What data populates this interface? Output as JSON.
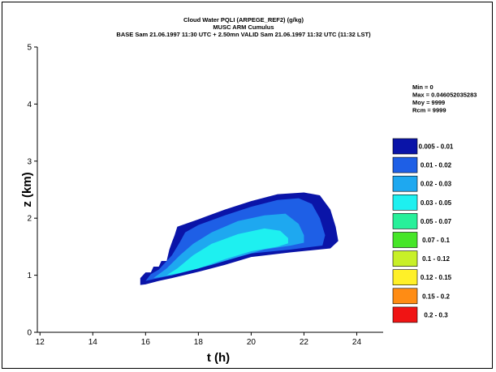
{
  "chart_data": {
    "type": "filled-contour",
    "title_lines": [
      "Cloud Water PQLI (ARPEGE_REF2) (g/kg)",
      "MUSC ARM Cumulus",
      "BASE Sam 21.06.1997 11:30 UTC + 2.50mn VALID Sam 21.06.1997 11:32 UTC (11:32 LST)"
    ],
    "xlabel": "t (h)",
    "ylabel": "z (km)",
    "xlim": [
      11.9,
      25
    ],
    "ylim": [
      0,
      5
    ],
    "xticks": [
      "12",
      "14",
      "16",
      "18",
      "20",
      "22",
      "24"
    ],
    "yticks": [
      "0",
      "1",
      "2",
      "3",
      "4",
      "5"
    ],
    "stats": [
      "Min = 0",
      "Max = 0.046052035283",
      "Moy = 9999",
      "Rcm = 9999"
    ],
    "levels": [
      {
        "label": "0.005 - 0.01",
        "color": "#0a14a8"
      },
      {
        "label": "0.01 - 0.02",
        "color": "#1e5fe6"
      },
      {
        "label": "0.02 - 0.03",
        "color": "#1ea8f0"
      },
      {
        "label": "0.03 - 0.05",
        "color": "#1ef0f0"
      },
      {
        "label": "0.05 - 0.07",
        "color": "#28f09a"
      },
      {
        "label": "0.07 - 0.1",
        "color": "#46e628"
      },
      {
        "label": "0.1 - 0.12",
        "color": "#c8f028"
      },
      {
        "label": "0.12 - 0.15",
        "color": "#fff028"
      },
      {
        "label": "0.15 - 0.2",
        "color": "#ff8c14"
      },
      {
        "label": "0.2 - 0.3",
        "color": "#f01414"
      }
    ],
    "contours": [
      {
        "level": 0,
        "points": [
          [
            15.8,
            0.83
          ],
          [
            15.8,
            0.95
          ],
          [
            16.0,
            1.05
          ],
          [
            16.2,
            1.05
          ],
          [
            16.3,
            1.15
          ],
          [
            16.5,
            1.15
          ],
          [
            16.6,
            1.25
          ],
          [
            16.8,
            1.25
          ],
          [
            16.9,
            1.45
          ],
          [
            17.0,
            1.58
          ],
          [
            17.1,
            1.7
          ],
          [
            17.2,
            1.85
          ],
          [
            18.0,
            1.98
          ],
          [
            19.0,
            2.15
          ],
          [
            20.0,
            2.3
          ],
          [
            21.0,
            2.42
          ],
          [
            22.0,
            2.45
          ],
          [
            22.6,
            2.4
          ],
          [
            23.0,
            2.15
          ],
          [
            23.2,
            1.85
          ],
          [
            23.3,
            1.6
          ],
          [
            23.0,
            1.47
          ],
          [
            21.5,
            1.4
          ],
          [
            20.0,
            1.32
          ],
          [
            19.0,
            1.18
          ],
          [
            18.0,
            1.06
          ],
          [
            17.0,
            0.95
          ],
          [
            16.5,
            0.9
          ],
          [
            16.0,
            0.84
          ]
        ]
      },
      {
        "level": 1,
        "points": [
          [
            16.0,
            0.9
          ],
          [
            16.2,
            1.02
          ],
          [
            16.5,
            1.1
          ],
          [
            17.0,
            1.35
          ],
          [
            17.3,
            1.58
          ],
          [
            17.5,
            1.75
          ],
          [
            18.0,
            1.88
          ],
          [
            19.0,
            2.05
          ],
          [
            20.0,
            2.2
          ],
          [
            21.0,
            2.32
          ],
          [
            21.8,
            2.35
          ],
          [
            22.3,
            2.25
          ],
          [
            22.6,
            2.0
          ],
          [
            22.8,
            1.7
          ],
          [
            22.7,
            1.52
          ],
          [
            21.5,
            1.45
          ],
          [
            20.0,
            1.38
          ],
          [
            19.0,
            1.25
          ],
          [
            18.0,
            1.12
          ],
          [
            17.0,
            1.0
          ],
          [
            16.5,
            0.95
          ]
        ]
      },
      {
        "level": 2,
        "points": [
          [
            16.3,
            0.95
          ],
          [
            16.8,
            1.12
          ],
          [
            17.3,
            1.35
          ],
          [
            17.8,
            1.55
          ],
          [
            18.5,
            1.75
          ],
          [
            19.5,
            1.95
          ],
          [
            20.5,
            2.05
          ],
          [
            21.3,
            2.08
          ],
          [
            21.8,
            1.9
          ],
          [
            22.0,
            1.7
          ],
          [
            22.0,
            1.57
          ],
          [
            21.5,
            1.52
          ],
          [
            20.5,
            1.45
          ],
          [
            19.5,
            1.32
          ],
          [
            18.5,
            1.18
          ],
          [
            17.5,
            1.06
          ],
          [
            17.0,
            1.0
          ],
          [
            16.6,
            0.97
          ]
        ]
      },
      {
        "level": 3,
        "points": [
          [
            16.8,
            1.0
          ],
          [
            17.2,
            1.12
          ],
          [
            17.8,
            1.35
          ],
          [
            18.5,
            1.55
          ],
          [
            19.5,
            1.72
          ],
          [
            20.5,
            1.82
          ],
          [
            21.1,
            1.78
          ],
          [
            21.4,
            1.65
          ],
          [
            21.4,
            1.56
          ],
          [
            21.0,
            1.5
          ],
          [
            20.0,
            1.42
          ],
          [
            19.0,
            1.28
          ],
          [
            18.0,
            1.12
          ],
          [
            17.3,
            1.04
          ]
        ]
      }
    ]
  }
}
